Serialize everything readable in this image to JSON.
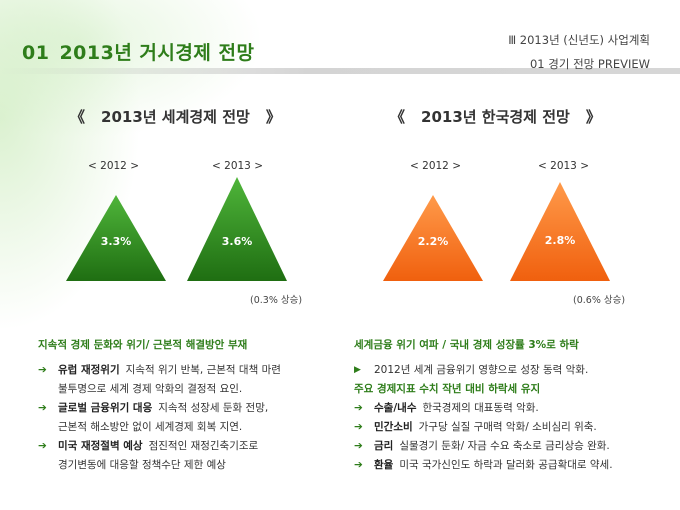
{
  "header": {
    "number": "01",
    "title": "2013년 거시경제 전망",
    "section_line": "Ⅲ  2013년 (신년도) 사업계획",
    "subsection_line": "01  경기 전망 PREVIEW"
  },
  "world": {
    "title": "2013년 세계경제 전망",
    "open_bracket": "《",
    "close_bracket": "》",
    "year1": "< 2012 >",
    "year2": "< 2013 >",
    "value1": "3.3%",
    "value2": "3.6%",
    "rise": "(0.3% 상승)",
    "color": "#2e8b1e",
    "heading": "지속적 경제 둔화와 위기/ 근본적 해결방안 부재",
    "bullets": [
      {
        "key": "유럽 재정위기",
        "text": "지속적 위기 반복, 근본적 대책 마련",
        "cont": "불투명으로 세계 경제 악화의 결정적 요인."
      },
      {
        "key": "글로벌 금융위기 대응",
        "text": "지속적 성장세 둔화 전망,",
        "cont": "근본적 해소방안 없이 세계경제 회복 지연."
      },
      {
        "key": "미국 재정절벽 예상",
        "text": "점진적인 재정긴축기조로",
        "cont": "경기변동에 대응할 정책수단 제한 예상"
      }
    ]
  },
  "korea": {
    "title": "2013년 한국경제 전망",
    "open_bracket": "《",
    "close_bracket": "》",
    "year1": "< 2012 >",
    "year2": "< 2013 >",
    "value1": "2.2%",
    "value2": "2.8%",
    "rise": "(0.6% 상승)",
    "color": "#f26a1b",
    "heading": "세계금융 위기 여파 / 국내 경제 성장률 3%로 하락",
    "line1": "2012년 세계 금융위기 영향으로 성장 동력 악화.",
    "heading2": "주요 경제지표 수치 작년 대비 하락세 유지",
    "bullets": [
      {
        "key": "수출/내수",
        "text": "한국경제의 대표동력 악화."
      },
      {
        "key": "민간소비",
        "text": "가구당 실질 구매력 악화/ 소비심리 위축."
      },
      {
        "key": "금리",
        "text": "실물경기 둔화/ 자금 수요 축소로 금리상승 완화."
      },
      {
        "key": "환율",
        "text": "미국 국가신인도 하락과 달러화 공급확대로 약세."
      }
    ]
  }
}
